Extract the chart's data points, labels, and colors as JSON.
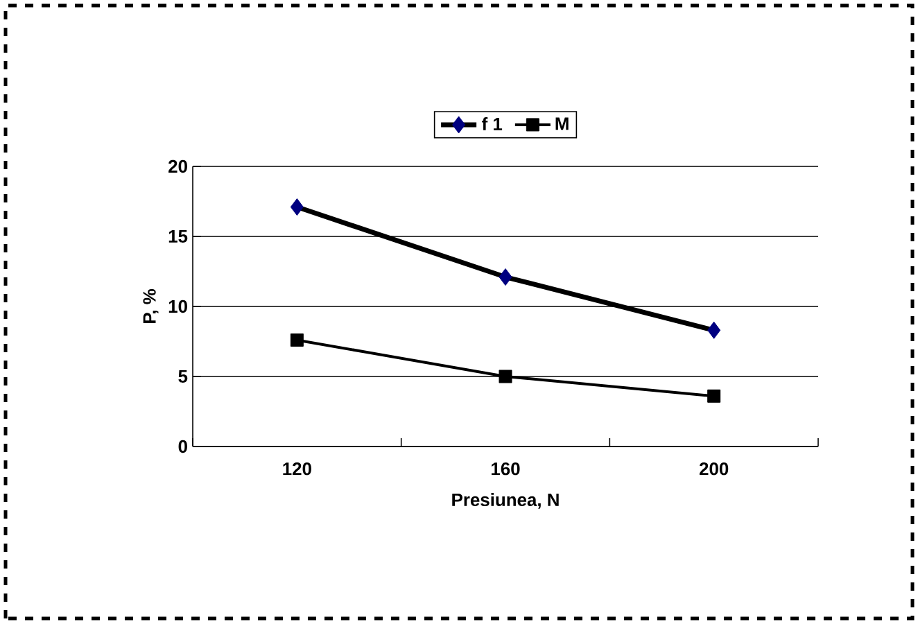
{
  "chart_data": {
    "type": "line",
    "xlabel": "Presiunea, N",
    "ylabel": "P, %",
    "categories": [
      "120",
      "160",
      "200"
    ],
    "series": [
      {
        "name": "f 1",
        "color": "#000080",
        "marker": "diamond",
        "values": [
          17.1,
          12.1,
          8.3
        ]
      },
      {
        "name": "M",
        "color": "#000000",
        "marker": "square",
        "values": [
          7.6,
          5.0,
          3.6
        ]
      }
    ],
    "ylim": [
      0,
      20
    ],
    "yticks": [
      0,
      5,
      10,
      15,
      20
    ],
    "grid": "y",
    "legend": "top"
  }
}
